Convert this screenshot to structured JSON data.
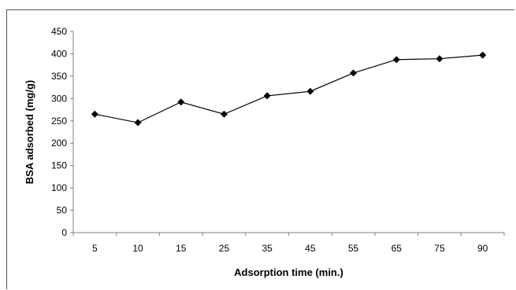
{
  "chart_data": {
    "type": "line",
    "title": "",
    "xlabel": "Adsorption time (min.)",
    "ylabel": "BSA adsorbed (mg/g)",
    "categories": [
      "5",
      "10",
      "15",
      "25",
      "35",
      "45",
      "55",
      "65",
      "75",
      "90"
    ],
    "series": [
      {
        "values": [
          265,
          246,
          292,
          265,
          306,
          316,
          357,
          387,
          389,
          397
        ]
      }
    ],
    "ylim": [
      0,
      450
    ],
    "yticks": [
      0,
      50,
      100,
      150,
      200,
      250,
      300,
      350,
      400,
      450
    ],
    "grid": false,
    "legend": "none",
    "line_color": "#000000",
    "marker": "diamond"
  }
}
